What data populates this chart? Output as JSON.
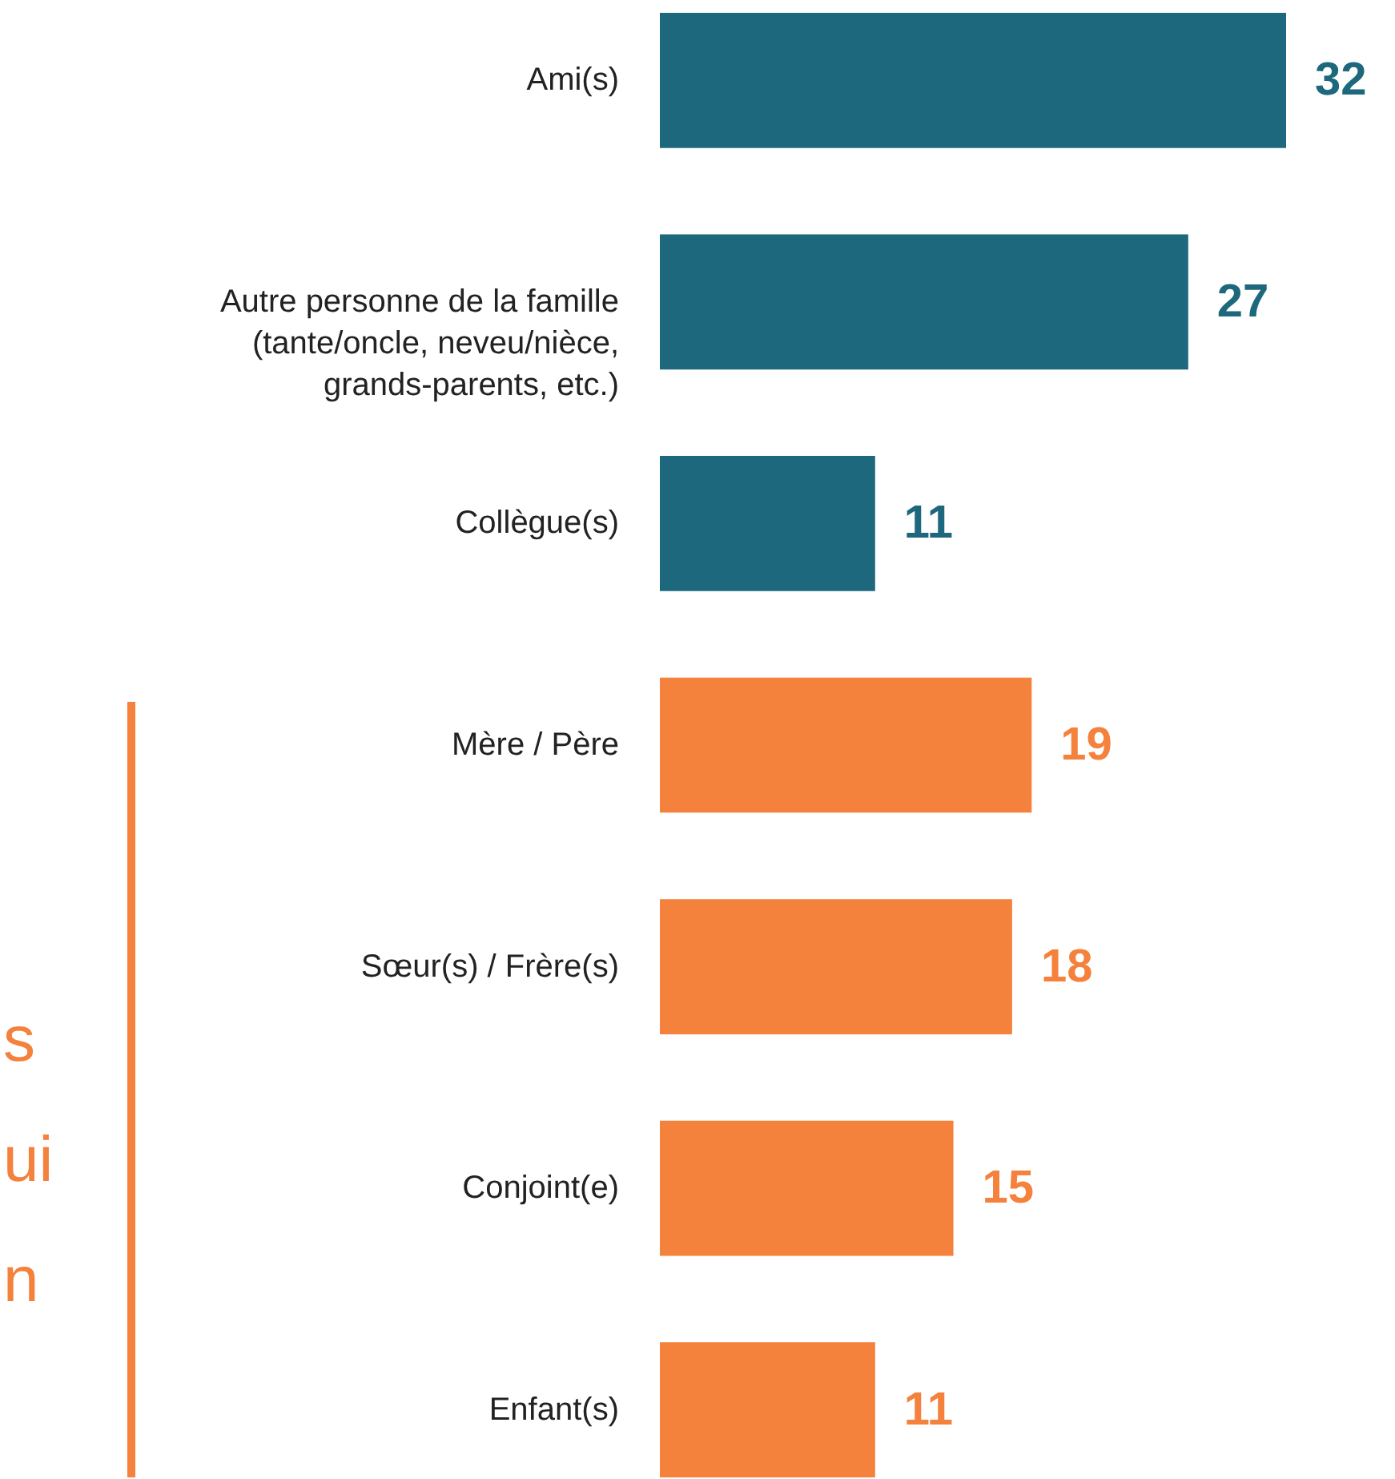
{
  "chart_data": {
    "type": "bar",
    "orientation": "horizontal",
    "data_labels": true,
    "categories": [
      "Ami(s)",
      "Autre personne de la famille (tante/oncle, neveu/nièce, grands-parents, etc.)",
      "Collègue(s)",
      "Mère / Père",
      "Sœur(s) / Frère(s)",
      "Conjoint(e)",
      "Enfant(s)"
    ],
    "values": [
      32,
      27,
      11,
      19,
      18,
      15,
      11
    ],
    "colors": [
      "#1d687c",
      "#1d687c",
      "#1d687c",
      "#f4813c",
      "#f4813c",
      "#f4813c",
      "#f4813c"
    ],
    "annotations": [
      "s",
      "ui",
      "n"
    ],
    "grid": false
  }
}
